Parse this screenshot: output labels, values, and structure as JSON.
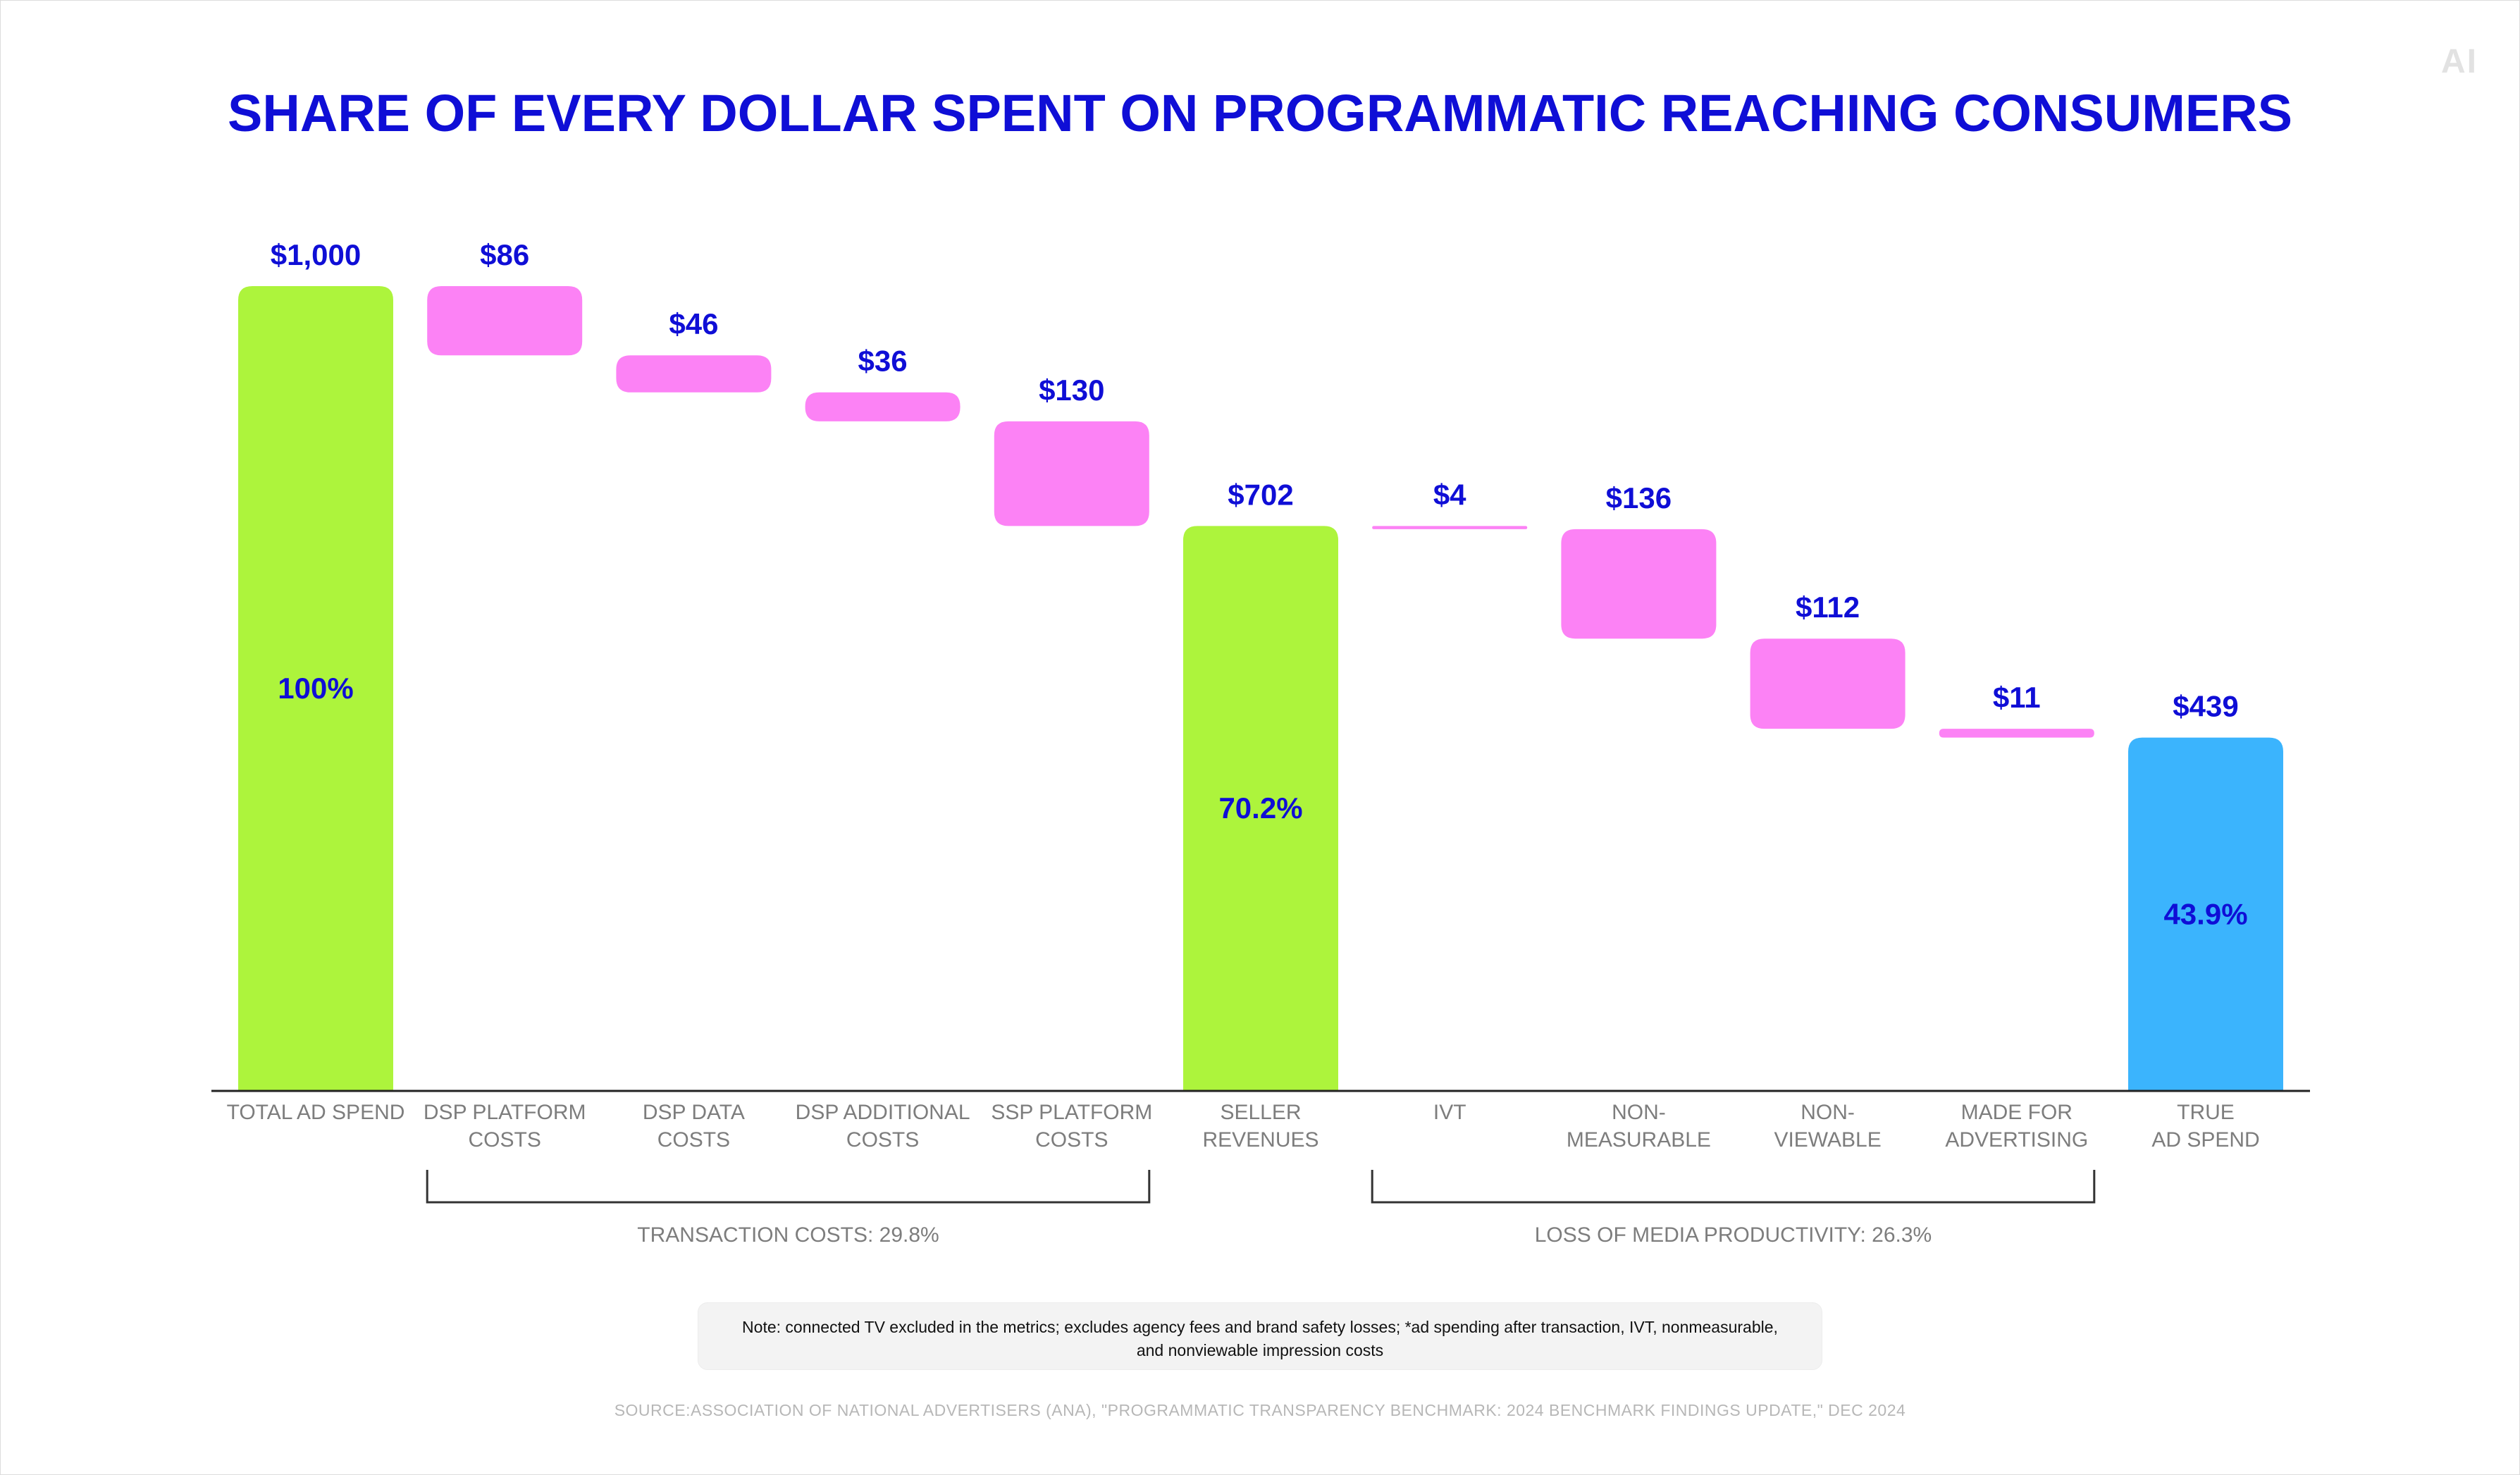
{
  "header": {
    "title": "SHARE OF EVERY DOLLAR SPENT ON PROGRAMMATIC REACHING CONSUMERS",
    "logo_text": "AI"
  },
  "chart_data": {
    "type": "bar",
    "subtype": "waterfall",
    "title": "SHARE OF EVERY DOLLAR SPENT ON PROGRAMMATIC REACHING CONSUMERS",
    "ylim": [
      0,
      1000
    ],
    "grid": false,
    "categories": [
      [
        "TOTAL AD SPEND"
      ],
      [
        "DSP PLATFORM",
        "COSTS"
      ],
      [
        "DSP DATA",
        "COSTS"
      ],
      [
        "DSP ADDITIONAL",
        "COSTS"
      ],
      [
        "SSP PLATFORM",
        "COSTS"
      ],
      [
        "SELLER",
        "REVENUES"
      ],
      [
        "IVT"
      ],
      [
        "NON-",
        "MEASURABLE"
      ],
      [
        "NON-",
        "VIEWABLE"
      ],
      [
        "MADE FOR",
        "ADVERTISING"
      ],
      [
        "TRUE",
        "AD SPEND"
      ]
    ],
    "bars": [
      {
        "kind": "total",
        "start": 0,
        "end": 1000,
        "value_label": "$1,000",
        "pct_label": "100%",
        "color": "#adf43c"
      },
      {
        "kind": "decrease",
        "start": 914,
        "end": 1000,
        "value_label": "$86",
        "color": "#fc82f5"
      },
      {
        "kind": "decrease",
        "start": 868,
        "end": 914,
        "value_label": "$46",
        "color": "#fc82f5"
      },
      {
        "kind": "decrease",
        "start": 832,
        "end": 868,
        "value_label": "$36",
        "color": "#fc82f5"
      },
      {
        "kind": "decrease",
        "start": 702,
        "end": 832,
        "value_label": "$130",
        "color": "#fc82f5"
      },
      {
        "kind": "total",
        "start": 0,
        "end": 702,
        "value_label": "$702",
        "pct_label": "70.2%",
        "color": "#adf43c"
      },
      {
        "kind": "decrease",
        "start": 698,
        "end": 702,
        "value_label": "$4",
        "color": "#fc82f5"
      },
      {
        "kind": "decrease",
        "start": 562,
        "end": 698,
        "value_label": "$136",
        "color": "#fc82f5"
      },
      {
        "kind": "decrease",
        "start": 450,
        "end": 562,
        "value_label": "$112",
        "color": "#fc82f5"
      },
      {
        "kind": "decrease",
        "start": 439,
        "end": 450,
        "value_label": "$11",
        "color": "#fc82f5"
      },
      {
        "kind": "total",
        "start": 0,
        "end": 439,
        "value_label": "$439",
        "pct_label": "43.9%",
        "color": "#3bb4fd"
      }
    ],
    "groups": [
      {
        "label": "TRANSACTION COSTS: 29.8%",
        "from": 1,
        "to": 4
      },
      {
        "label": "LOSS OF MEDIA PRODUCTIVITY: 26.3%",
        "from": 6,
        "to": 9
      }
    ]
  },
  "footer": {
    "note": "Note: connected TV excluded in the metrics; excludes agency fees and brand safety losses; *ad spending after transaction, IVT, nonmeasurable, and nonviewable impression costs",
    "source": "SOURCE:ASSOCIATION OF NATIONAL ADVERTISERS (ANA), \"PROGRAMMATIC TRANSPARENCY BENCHMARK: 2024 BENCHMARK FINDINGS UPDATE,\" DEC 2024"
  },
  "colors": {
    "title": "#0f0ed6",
    "label": "#0f0ed6",
    "category": "#7d7d7d",
    "total": "#adf43c",
    "decrease": "#fc82f5",
    "final": "#3bb4fd"
  }
}
